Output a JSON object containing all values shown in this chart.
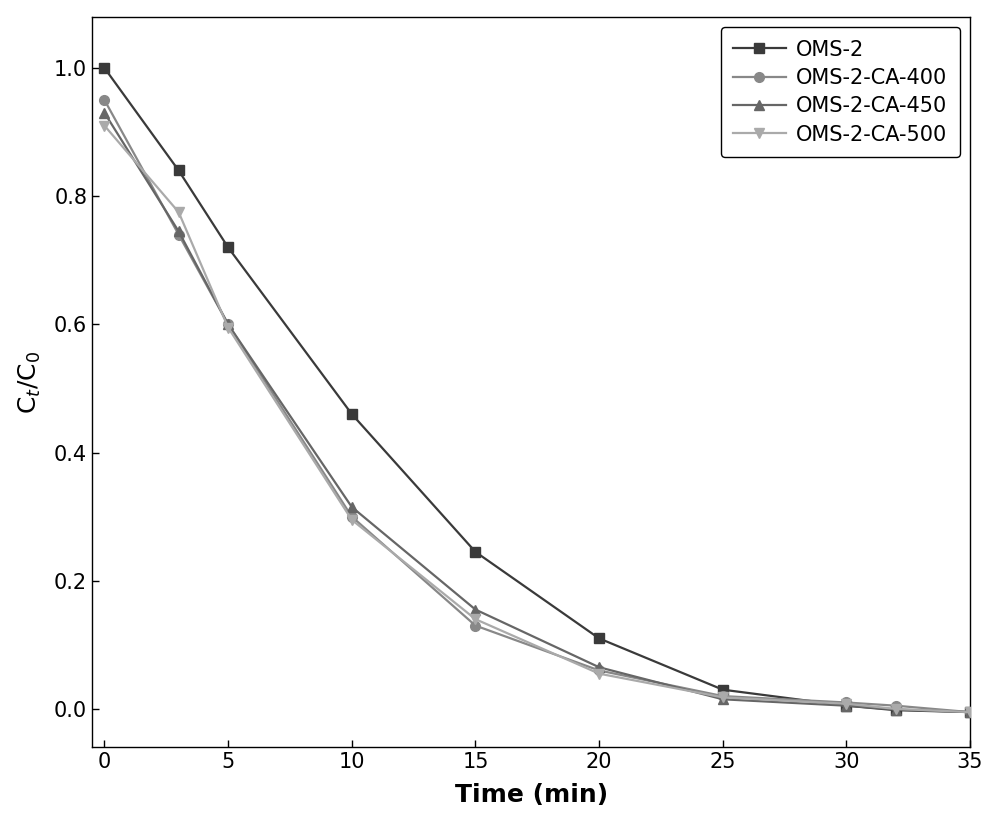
{
  "series": [
    {
      "label": "OMS-2",
      "color": "#3a3a3a",
      "marker": "s",
      "markersize": 7,
      "linewidth": 1.6,
      "x": [
        0,
        3,
        5,
        10,
        15,
        20,
        25,
        30,
        32,
        35
      ],
      "y": [
        1.0,
        0.84,
        0.72,
        0.46,
        0.245,
        0.11,
        0.03,
        0.005,
        -0.002,
        -0.005
      ]
    },
    {
      "label": "OMS-2-CA-400",
      "color": "#888888",
      "marker": "o",
      "markersize": 7,
      "linewidth": 1.6,
      "x": [
        0,
        3,
        5,
        10,
        15,
        20,
        25,
        30,
        32,
        35
      ],
      "y": [
        0.95,
        0.74,
        0.6,
        0.3,
        0.13,
        0.06,
        0.02,
        0.01,
        0.005,
        -0.005
      ]
    },
    {
      "label": "OMS-2-CA-450",
      "color": "#666666",
      "marker": "^",
      "markersize": 7,
      "linewidth": 1.6,
      "x": [
        0,
        3,
        5,
        10,
        15,
        20,
        25,
        30,
        32,
        35
      ],
      "y": [
        0.93,
        0.745,
        0.6,
        0.315,
        0.155,
        0.065,
        0.015,
        0.005,
        -0.001,
        -0.005
      ]
    },
    {
      "label": "OMS-2-CA-500",
      "color": "#aaaaaa",
      "marker": "v",
      "markersize": 7,
      "linewidth": 1.6,
      "x": [
        0,
        3,
        5,
        10,
        15,
        20,
        25,
        30,
        32,
        35
      ],
      "y": [
        0.91,
        0.775,
        0.595,
        0.295,
        0.14,
        0.055,
        0.018,
        0.008,
        0.0,
        -0.005
      ]
    }
  ],
  "xlabel": "Time (min)",
  "ylabel": "C$_t$/C$_0$",
  "xlim": [
    -0.5,
    35
  ],
  "ylim": [
    -0.06,
    1.08
  ],
  "xticks": [
    0,
    5,
    10,
    15,
    20,
    25,
    30,
    35
  ],
  "yticks": [
    0.0,
    0.2,
    0.4,
    0.6,
    0.8,
    1.0
  ],
  "legend_loc": "upper right",
  "legend_fontsize": 15,
  "axis_label_fontsize": 18,
  "tick_fontsize": 15,
  "background_color": "#ffffff",
  "figure_width": 10.0,
  "figure_height": 8.24,
  "dpi": 100
}
